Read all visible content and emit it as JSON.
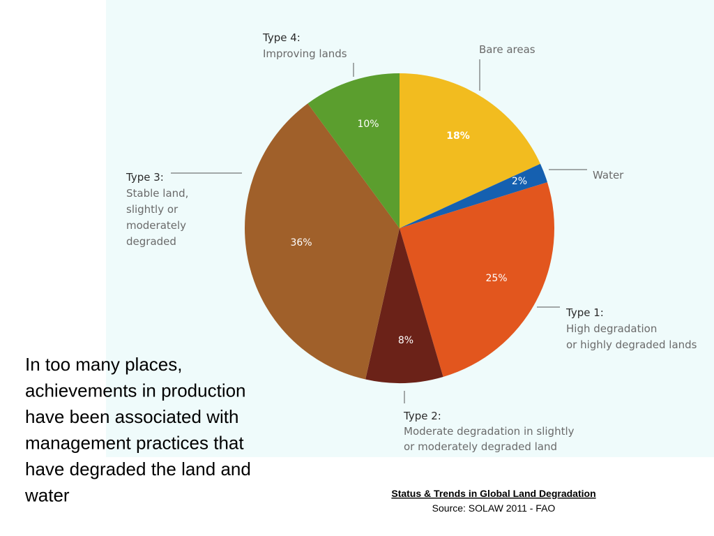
{
  "chart_data": {
    "type": "pie",
    "categories": [
      [
        "Bare areas"
      ],
      [
        "Water"
      ],
      [
        "Type 1:",
        "High degradation",
        "or highly degraded lands"
      ],
      [
        "Type 2:",
        "Moderate degradation in slightly",
        "or moderately degraded land"
      ],
      [
        "Type 3:",
        "Stable land,",
        "slightly or",
        "moderately",
        "degraded"
      ],
      [
        "Type 4:",
        "Improving lands"
      ]
    ],
    "values": [
      18,
      2,
      25,
      8,
      36,
      10
    ],
    "value_labels": [
      "18%",
      "2%",
      "25%",
      "8%",
      "36%",
      "10%"
    ],
    "colors": [
      "#f2bc1f",
      "#1560b0",
      "#e2561e",
      "#6b2218",
      "#a0602a",
      "#5b9e2e"
    ]
  },
  "text": [
    "In too many places,",
    "achievements in production",
    "have been associated with",
    "management practices that",
    "have degraded the land and",
    "water"
  ],
  "caption": {
    "title": "Status & Trends in Global Land Degradation",
    "source": "Source: SOLAW 2011 - FAO"
  }
}
